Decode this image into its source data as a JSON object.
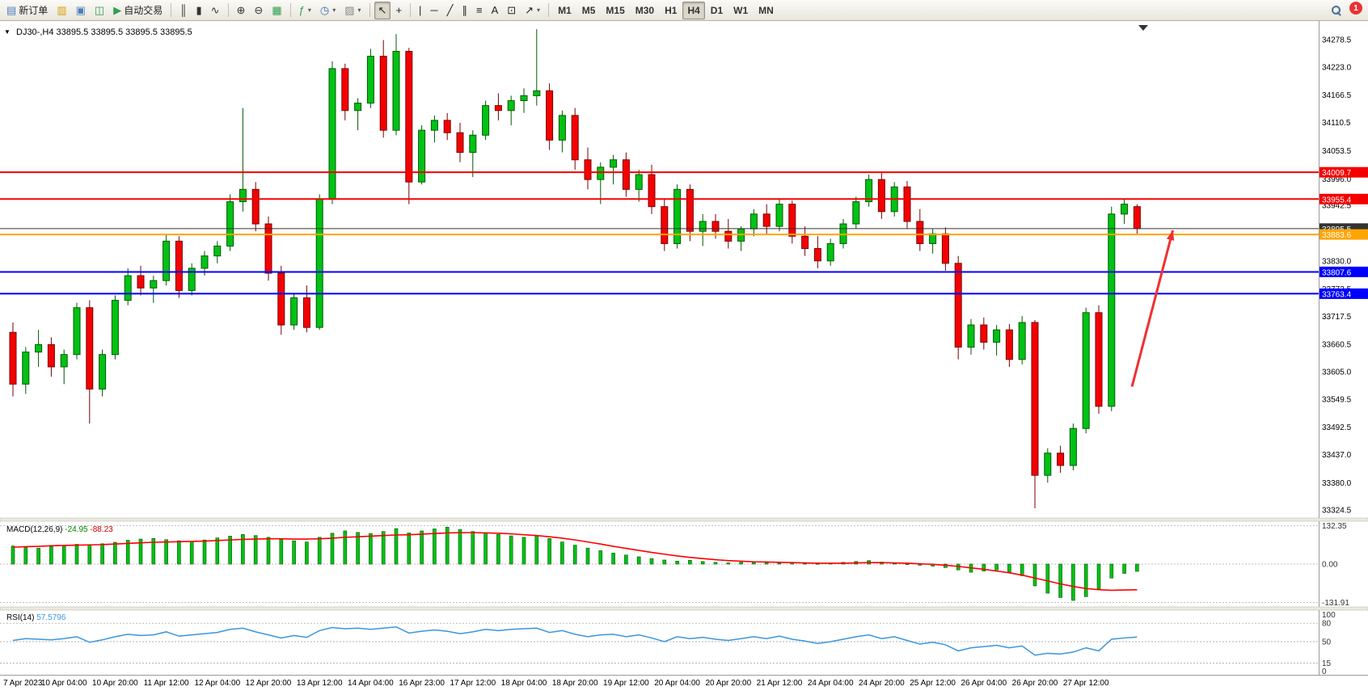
{
  "toolbar": {
    "items": [
      {
        "type": "button",
        "name": "new-order-button",
        "icon": "order-ticket-icon",
        "glyph": "▤",
        "glyph_color": "#4a7ebb",
        "label": "新订单"
      },
      {
        "type": "button",
        "name": "new-chart-button",
        "icon": "chart-plus-icon",
        "glyph": "▥",
        "glyph_color": "#d99c00"
      },
      {
        "type": "button",
        "name": "market-watch-button",
        "icon": "quotes-list-icon",
        "glyph": "▣",
        "glyph_color": "#4a7ebb"
      },
      {
        "type": "button",
        "name": "navigator-button",
        "icon": "navigator-icon",
        "glyph": "◫",
        "glyph_color": "#2e9e4f"
      },
      {
        "type": "button",
        "name": "autotrading-button",
        "icon": "play-icon",
        "glyph": "▶",
        "glyph_color": "#2e9e4f",
        "label": "自动交易"
      },
      {
        "type": "sep"
      },
      {
        "type": "button",
        "name": "bar-chart-button",
        "icon": "ohlc-bars-icon",
        "glyph": "║",
        "glyph_color": "#333333"
      },
      {
        "type": "button",
        "name": "candlestick-button",
        "icon": "candlestick-icon",
        "glyph": "▮",
        "glyph_color": "#333333"
      },
      {
        "type": "button",
        "name": "line-chart-button",
        "icon": "line-chart-icon",
        "glyph": "∿",
        "glyph_color": "#333333"
      },
      {
        "type": "sep"
      },
      {
        "type": "button",
        "name": "zoom-in-button",
        "icon": "zoom-in-icon",
        "glyph": "⊕",
        "glyph_color": "#333333"
      },
      {
        "type": "button",
        "name": "zoom-out-button",
        "icon": "zoom-out-icon",
        "glyph": "⊖",
        "glyph_color": "#333333"
      },
      {
        "type": "button",
        "name": "tile-windows-button",
        "icon": "grid-icon",
        "glyph": "▦",
        "glyph_color": "#2e9e4f"
      },
      {
        "type": "sep"
      },
      {
        "type": "button",
        "name": "indicators-button",
        "icon": "function-icon",
        "glyph": "ƒ",
        "glyph_color": "#2e9e4f",
        "dropdown": true
      },
      {
        "type": "button",
        "name": "periods-button",
        "icon": "clock-icon",
        "glyph": "◷",
        "glyph_color": "#3b6fb4",
        "dropdown": true
      },
      {
        "type": "button",
        "name": "templates-button",
        "icon": "template-icon",
        "glyph": "▨",
        "glyph_color": "#888888",
        "dropdown": true
      },
      {
        "type": "sep"
      },
      {
        "type": "button",
        "name": "cursor-button",
        "icon": "pointer-icon",
        "glyph": "↖",
        "glyph_color": "#222222",
        "active": true
      },
      {
        "type": "button",
        "name": "crosshair-button",
        "icon": "crosshair-icon",
        "glyph": "+",
        "glyph_color": "#222222"
      },
      {
        "type": "sep"
      },
      {
        "type": "button",
        "name": "vertical-line-button",
        "icon": "vertical-line-icon",
        "glyph": "|",
        "glyph_color": "#222222"
      },
      {
        "type": "button",
        "name": "horizontal-line-button",
        "icon": "horizontal-line-icon",
        "glyph": "─",
        "glyph_color": "#222222"
      },
      {
        "type": "button",
        "name": "trendline-button",
        "icon": "trendline-icon",
        "glyph": "╱",
        "glyph_color": "#222222"
      },
      {
        "type": "button",
        "name": "channel-button",
        "icon": "channel-icon",
        "glyph": "∥",
        "glyph_color": "#222222"
      },
      {
        "type": "button",
        "name": "fibonacci-button",
        "icon": "fibonacci-icon",
        "glyph": "≡",
        "glyph_color": "#222222"
      },
      {
        "type": "button",
        "name": "text-button",
        "icon": "text-icon",
        "glyph": "A",
        "glyph_color": "#222222"
      },
      {
        "type": "button",
        "name": "text-label-button",
        "icon": "label-icon",
        "glyph": "⊡",
        "glyph_color": "#222222"
      },
      {
        "type": "button",
        "name": "arrows-button",
        "icon": "arrow-objects-icon",
        "glyph": "↗",
        "glyph_color": "#222222",
        "dropdown": true
      },
      {
        "type": "sep"
      },
      {
        "type": "tf",
        "name": "timeframe-m1-button",
        "label": "M1"
      },
      {
        "type": "tf",
        "name": "timeframe-m5-button",
        "label": "M5"
      },
      {
        "type": "tf",
        "name": "timeframe-m15-button",
        "label": "M15"
      },
      {
        "type": "tf",
        "name": "timeframe-m30-button",
        "label": "M30"
      },
      {
        "type": "tf",
        "name": "timeframe-h1-button",
        "label": "H1"
      },
      {
        "type": "tf",
        "name": "timeframe-h4-button",
        "label": "H4",
        "active": true
      },
      {
        "type": "tf",
        "name": "timeframe-d1-button",
        "label": "D1"
      },
      {
        "type": "tf",
        "name": "timeframe-w1-button",
        "label": "W1"
      },
      {
        "type": "tf",
        "name": "timeframe-mn-button",
        "label": "MN"
      },
      {
        "type": "spacer"
      },
      {
        "type": "button",
        "name": "search-button",
        "icon": "magnifier-icon",
        "css_icon": "mag"
      },
      {
        "type": "badge",
        "name": "notification-badge",
        "label": "1"
      }
    ]
  },
  "chart_data": {
    "type": "candlestick",
    "symbol": "DJ30-",
    "timeframe": "H4",
    "window_title": "DJ30-,H4  33895.5 33895.5 33895.5 33895.5",
    "colors": {
      "bull": "#00c214",
      "bull_border": "#005a00",
      "bear": "#f50000",
      "bear_border": "#7a0000",
      "macd_bar": "#00c214",
      "macd_bar_border": "#005a00",
      "macd_signal": "#ff0000",
      "rsi_line": "#3a96dd",
      "arrow": "#f03030",
      "bid_line": "#333333"
    },
    "price_axis": {
      "min": 33310,
      "max": 34310,
      "ticks": [
        34278.5,
        34223.0,
        34166.5,
        34110.5,
        34053.5,
        33996.0,
        33942.5,
        33886.0,
        33830.0,
        33773.5,
        33717.5,
        33660.5,
        33605.0,
        33549.5,
        33492.5,
        33437.0,
        33380.0,
        33324.5
      ]
    },
    "hlines": [
      {
        "price": 34009.7,
        "label": "34009.7",
        "color": "#f50000",
        "width": 2
      },
      {
        "price": 33955.4,
        "label": "33955.4",
        "color": "#f50000",
        "width": 2
      },
      {
        "price": 33895.5,
        "label": "33895.5",
        "color": "#333333",
        "width": 1
      },
      {
        "price": 33883.6,
        "label": "33883.6",
        "color": "#ffa500",
        "width": 2
      },
      {
        "price": 33807.6,
        "label": "33807.6",
        "color": "#0000ff",
        "width": 2
      },
      {
        "price": 33763.4,
        "label": "33763.4",
        "color": "#0000ff",
        "width": 2
      }
    ],
    "time_labels": [
      "7 Apr 2023",
      "10 Apr 04:00",
      "10 Apr 20:00",
      "11 Apr 12:00",
      "12 Apr 04:00",
      "12 Apr 20:00",
      "13 Apr 12:00",
      "14 Apr 04:00",
      "16 Apr 23:00",
      "17 Apr 12:00",
      "18 Apr 04:00",
      "18 Apr 20:00",
      "19 Apr 12:00",
      "20 Apr 04:00",
      "20 Apr 20:00",
      "21 Apr 12:00",
      "24 Apr 04:00",
      "24 Apr 20:00",
      "25 Apr 12:00",
      "26 Apr 04:00",
      "26 Apr 20:00",
      "27 Apr 12:00"
    ],
    "label_step": 4,
    "candles": [
      [
        33685,
        33705,
        33555,
        33580
      ],
      [
        33580,
        33655,
        33560,
        33645
      ],
      [
        33645,
        33690,
        33615,
        33660
      ],
      [
        33660,
        33675,
        33595,
        33615
      ],
      [
        33615,
        33650,
        33580,
        33640
      ],
      [
        33640,
        33745,
        33630,
        33735
      ],
      [
        33735,
        33750,
        33500,
        33570
      ],
      [
        33570,
        33650,
        33555,
        33640
      ],
      [
        33640,
        33760,
        33630,
        33750
      ],
      [
        33750,
        33815,
        33740,
        33800
      ],
      [
        33800,
        33820,
        33760,
        33775
      ],
      [
        33775,
        33800,
        33745,
        33790
      ],
      [
        33790,
        33885,
        33780,
        33870
      ],
      [
        33870,
        33880,
        33755,
        33770
      ],
      [
        33770,
        33825,
        33760,
        33815
      ],
      [
        33815,
        33850,
        33800,
        33840
      ],
      [
        33840,
        33870,
        33825,
        33860
      ],
      [
        33860,
        33965,
        33850,
        33950
      ],
      [
        33950,
        34140,
        33930,
        33975
      ],
      [
        33975,
        33990,
        33890,
        33905
      ],
      [
        33905,
        33920,
        33790,
        33805
      ],
      [
        33805,
        33820,
        33680,
        33700
      ],
      [
        33700,
        33765,
        33690,
        33755
      ],
      [
        33755,
        33780,
        33685,
        33695
      ],
      [
        33695,
        33965,
        33690,
        33955
      ],
      [
        33955,
        34235,
        33945,
        34220
      ],
      [
        34220,
        34230,
        34115,
        34135
      ],
      [
        34135,
        34160,
        34095,
        34150
      ],
      [
        34150,
        34260,
        34140,
        34245
      ],
      [
        34245,
        34278,
        34080,
        34095
      ],
      [
        34095,
        34290,
        34085,
        34255
      ],
      [
        34255,
        34262,
        33945,
        33990
      ],
      [
        33990,
        34105,
        33985,
        34095
      ],
      [
        34095,
        34125,
        34070,
        34115
      ],
      [
        34115,
        34130,
        34075,
        34090
      ],
      [
        34090,
        34110,
        34030,
        34050
      ],
      [
        34050,
        34095,
        34000,
        34085
      ],
      [
        34085,
        34155,
        34075,
        34145
      ],
      [
        34145,
        34170,
        34115,
        34135
      ],
      [
        34135,
        34165,
        34105,
        34155
      ],
      [
        34155,
        34180,
        34130,
        34165
      ],
      [
        34165,
        34300,
        34145,
        34175
      ],
      [
        34175,
        34190,
        34055,
        34075
      ],
      [
        34075,
        34135,
        34050,
        34125
      ],
      [
        34125,
        34140,
        34015,
        34035
      ],
      [
        34035,
        34060,
        33975,
        33995
      ],
      [
        33995,
        34030,
        33945,
        34020
      ],
      [
        34020,
        34045,
        33985,
        34035
      ],
      [
        34035,
        34050,
        33960,
        33975
      ],
      [
        33975,
        34015,
        33950,
        34005
      ],
      [
        34005,
        34025,
        33925,
        33940
      ],
      [
        33940,
        33955,
        33850,
        33865
      ],
      [
        33865,
        33985,
        33855,
        33975
      ],
      [
        33975,
        33985,
        33870,
        33890
      ],
      [
        33890,
        33925,
        33860,
        33910
      ],
      [
        33910,
        33925,
        33875,
        33890
      ],
      [
        33890,
        33915,
        33855,
        33870
      ],
      [
        33870,
        33900,
        33850,
        33895
      ],
      [
        33895,
        33935,
        33880,
        33925
      ],
      [
        33925,
        33945,
        33885,
        33900
      ],
      [
        33900,
        33955,
        33890,
        33945
      ],
      [
        33945,
        33952,
        33865,
        33880
      ],
      [
        33880,
        33900,
        33840,
        33855
      ],
      [
        33855,
        33880,
        33815,
        33830
      ],
      [
        33830,
        33875,
        33820,
        33865
      ],
      [
        33865,
        33915,
        33855,
        33905
      ],
      [
        33905,
        33960,
        33895,
        33950
      ],
      [
        33950,
        34005,
        33940,
        33995
      ],
      [
        33995,
        34008,
        33915,
        33930
      ],
      [
        33930,
        33990,
        33920,
        33980
      ],
      [
        33980,
        33992,
        33895,
        33910
      ],
      [
        33910,
        33935,
        33850,
        33865
      ],
      [
        33865,
        33895,
        33845,
        33885
      ],
      [
        33885,
        33898,
        33810,
        33825
      ],
      [
        33825,
        33840,
        33630,
        33655
      ],
      [
        33655,
        33712,
        33640,
        33700
      ],
      [
        33700,
        33715,
        33650,
        33665
      ],
      [
        33665,
        33700,
        33638,
        33690
      ],
      [
        33690,
        33702,
        33615,
        33630
      ],
      [
        33630,
        33718,
        33620,
        33705
      ],
      [
        33705,
        33710,
        33328,
        33395
      ],
      [
        33395,
        33450,
        33380,
        33440
      ],
      [
        33440,
        33455,
        33400,
        33415
      ],
      [
        33415,
        33500,
        33405,
        33490
      ],
      [
        33490,
        33735,
        33480,
        33725
      ],
      [
        33725,
        33740,
        33520,
        33535
      ],
      [
        33535,
        33940,
        33525,
        33925
      ],
      [
        33925,
        33955,
        33905,
        33945
      ],
      [
        33940,
        33945,
        33885,
        33895.5
      ]
    ],
    "arrow_annotation": {
      "from": {
        "index": 87.6,
        "price": 33575
      },
      "to": {
        "index": 90.8,
        "price": 33892
      }
    },
    "macd": {
      "name": "MACD(12,26,9)",
      "main_value": "-24.95",
      "signal_value": "-88.23",
      "axis_values": [
        132.35,
        0,
        -131.91
      ],
      "axis_labels": [
        "132.35",
        "0.00",
        "-131.91"
      ],
      "histogram": [
        62,
        58,
        55,
        60,
        64,
        68,
        66,
        70,
        75,
        82,
        86,
        88,
        84,
        80,
        78,
        83,
        90,
        96,
        102,
        98,
        92,
        85,
        80,
        76,
        92,
        106,
        114,
        109,
        105,
        112,
        122,
        107,
        114,
        121,
        127,
        119,
        112,
        107,
        102,
        97,
        92,
        97,
        88,
        76,
        65,
        55,
        46,
        38,
        31,
        25,
        19,
        14,
        10,
        13,
        9,
        6,
        4,
        6,
        8,
        5,
        7,
        4,
        2,
        1,
        3,
        6,
        9,
        12,
        7,
        3,
        0,
        -4,
        -7,
        -12,
        -20,
        -28,
        -24,
        -20,
        -28,
        -40,
        -75,
        -100,
        -115,
        -125,
        -112,
        -85,
        -48,
        -32,
        -24.95
      ],
      "signal": [
        58,
        60,
        61,
        63,
        64,
        65,
        66,
        67,
        69,
        71,
        73,
        75,
        76,
        77,
        78,
        79,
        81,
        83,
        85,
        86,
        87,
        87,
        86,
        86,
        87,
        89,
        92,
        94,
        96,
        98,
        100,
        101,
        103,
        105,
        107,
        108,
        108,
        107,
        106,
        104,
        101,
        98,
        94,
        89,
        83,
        76,
        69,
        61,
        54,
        47,
        40,
        34,
        28,
        23,
        19,
        15,
        12,
        10,
        8,
        7,
        6,
        5,
        4,
        3,
        3,
        3,
        4,
        5,
        5,
        4,
        3,
        1,
        -1,
        -4,
        -8,
        -13,
        -18,
        -24,
        -30,
        -38,
        -48,
        -58,
        -68,
        -77,
        -84,
        -88,
        -90,
        -89,
        -88.23
      ]
    },
    "rsi": {
      "name": "RSI(14)",
      "value": "57.5796",
      "levels": [
        100,
        80,
        50,
        15,
        0
      ],
      "dashed_levels": [
        80,
        50,
        15
      ],
      "series": [
        52,
        55,
        54,
        53,
        55,
        58,
        49,
        53,
        58,
        62,
        60,
        61,
        66,
        59,
        61,
        63,
        65,
        70,
        72,
        66,
        61,
        56,
        60,
        57,
        68,
        73,
        71,
        72,
        70,
        72,
        74,
        64,
        67,
        69,
        67,
        63,
        66,
        70,
        68,
        70,
        71,
        72,
        65,
        68,
        62,
        58,
        61,
        62,
        58,
        61,
        56,
        50,
        58,
        55,
        57,
        54,
        52,
        55,
        58,
        55,
        59,
        54,
        51,
        47,
        50,
        54,
        58,
        61,
        55,
        58,
        52,
        46,
        49,
        45,
        35,
        40,
        42,
        44,
        40,
        43,
        28,
        31,
        30,
        33,
        40,
        35,
        54,
        56,
        57.58
      ]
    }
  }
}
